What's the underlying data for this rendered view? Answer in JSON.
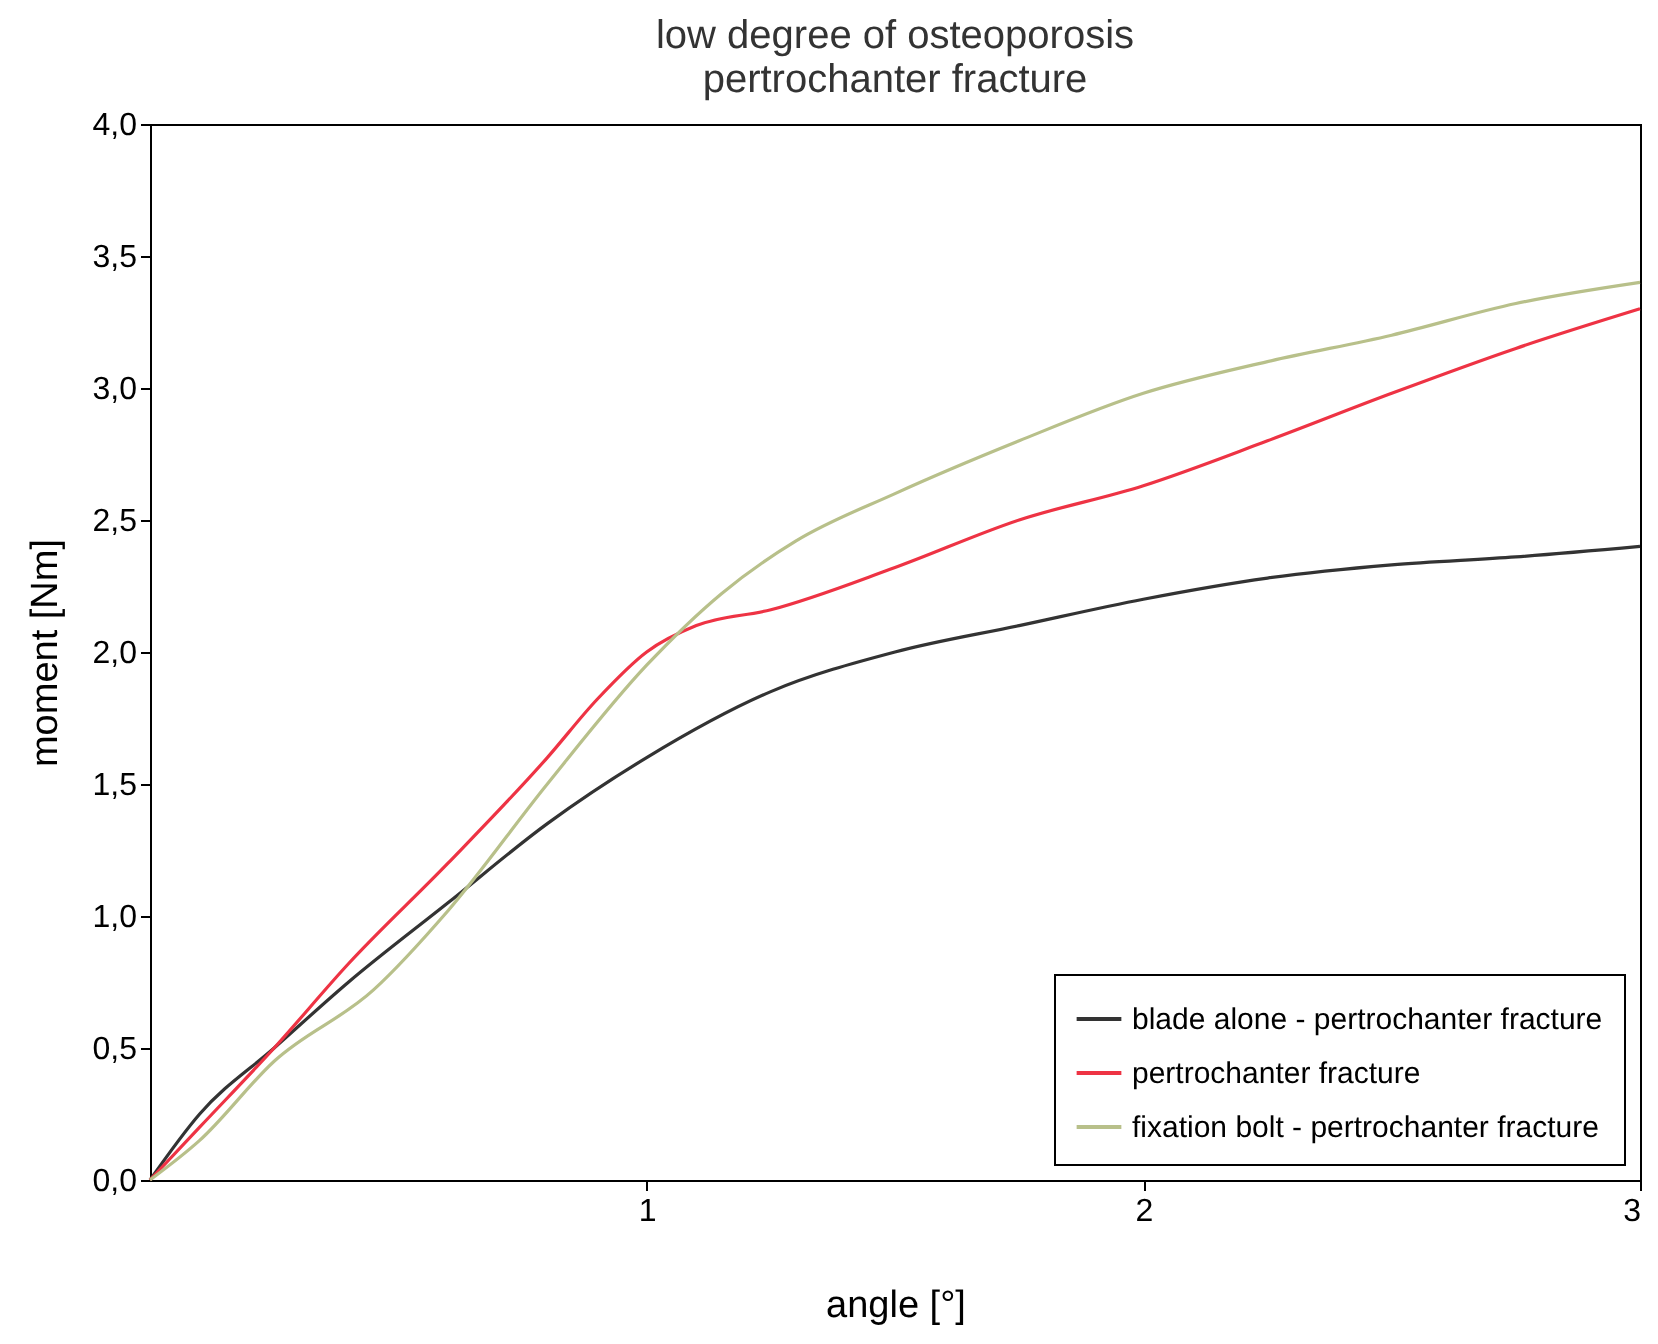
{
  "chart_data": {
    "type": "line",
    "title": [
      "low degree of osteoporosis",
      "pertrochanter fracture"
    ],
    "xlabel": "angle [°]",
    "ylabel": "moment [Nm]",
    "xlim": [
      0,
      3
    ],
    "xticks": [
      1,
      2,
      3
    ],
    "ylim": [
      0,
      4
    ],
    "yticks": [
      {
        "value": 0,
        "label": "0,0"
      },
      {
        "value": 0.5,
        "label": "0,5"
      },
      {
        "value": 1,
        "label": "1,0"
      },
      {
        "value": 1.5,
        "label": "1,5"
      },
      {
        "value": 2,
        "label": "2,0"
      },
      {
        "value": 2.5,
        "label": "2,5"
      },
      {
        "value": 3,
        "label": "3,0"
      },
      {
        "value": 3.5,
        "label": "3,5"
      },
      {
        "value": 4,
        "label": "4,0"
      }
    ],
    "grid": false,
    "legend": "bottom right",
    "series": [
      {
        "name": "blade alone - pertrochanter fracture",
        "color": "#333333",
        "x": [
          0,
          0.1,
          0.25,
          0.4,
          0.6,
          0.8,
          1.0,
          1.25,
          1.5,
          1.75,
          2.0,
          2.25,
          2.5,
          2.75,
          3.0
        ],
        "values": [
          0,
          0.25,
          0.5,
          0.75,
          1.05,
          1.35,
          1.6,
          1.85,
          2.0,
          2.1,
          2.2,
          2.28,
          2.33,
          2.36,
          2.4
        ]
      },
      {
        "name": "pertrochanter fracture",
        "color": "#ee3344",
        "x": [
          0,
          0.1,
          0.25,
          0.4,
          0.6,
          0.8,
          0.9,
          1.0,
          1.1,
          1.25,
          1.5,
          1.75,
          2.0,
          2.25,
          2.5,
          2.75,
          3.0
        ],
        "values": [
          0,
          0.2,
          0.5,
          0.82,
          1.2,
          1.6,
          1.82,
          2.0,
          2.1,
          2.16,
          2.32,
          2.5,
          2.63,
          2.8,
          2.98,
          3.15,
          3.3
        ]
      },
      {
        "name": "fixation bolt - pertrochanter fracture",
        "color": "#b8c08a",
        "x": [
          0,
          0.1,
          0.25,
          0.45,
          0.6,
          0.8,
          1.0,
          1.15,
          1.3,
          1.5,
          1.75,
          2.0,
          2.25,
          2.5,
          2.75,
          3.0
        ],
        "values": [
          0,
          0.15,
          0.45,
          0.72,
          1.02,
          1.5,
          1.95,
          2.22,
          2.42,
          2.6,
          2.8,
          2.98,
          3.1,
          3.2,
          3.32,
          3.4
        ]
      }
    ]
  }
}
